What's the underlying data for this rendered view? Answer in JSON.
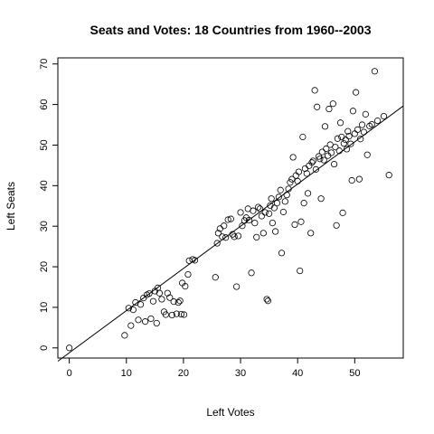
{
  "chart_data": {
    "type": "scatter",
    "title": "Seats and Votes: 18 Countries from 1960--2003",
    "xlabel": "Left Votes",
    "ylabel": "Left Seats",
    "xlim": [
      -2,
      58.5
    ],
    "ylim": [
      -2.5,
      71.5
    ],
    "xticks": [
      0,
      10,
      20,
      30,
      40,
      50
    ],
    "yticks": [
      0,
      10,
      20,
      30,
      40,
      50,
      60,
      70
    ],
    "grid": false,
    "legend": "none",
    "marker": "open-circle",
    "fit_line": {
      "intercept": -1.2,
      "slope": 1.04
    },
    "points": [
      [
        0,
        0
      ],
      [
        9.7,
        3.1
      ],
      [
        10.4,
        9.8
      ],
      [
        10.8,
        5.5
      ],
      [
        11.2,
        9.4
      ],
      [
        11.6,
        11.2
      ],
      [
        12.1,
        6.9
      ],
      [
        12.5,
        10.7
      ],
      [
        13.0,
        12.3
      ],
      [
        13.3,
        6.5
      ],
      [
        13.6,
        13.1
      ],
      [
        14.0,
        13.4
      ],
      [
        14.3,
        7.2
      ],
      [
        14.7,
        11.5
      ],
      [
        15.0,
        14.0
      ],
      [
        15.3,
        6.1
      ],
      [
        15.5,
        14.8
      ],
      [
        15.8,
        13.5
      ],
      [
        16.2,
        12.0
      ],
      [
        16.6,
        8.9
      ],
      [
        16.9,
        8.2
      ],
      [
        17.2,
        13.5
      ],
      [
        17.6,
        12.4
      ],
      [
        18.0,
        8.1
      ],
      [
        18.3,
        11.4
      ],
      [
        18.8,
        8.4
      ],
      [
        19.1,
        11.2
      ],
      [
        19.4,
        11.6
      ],
      [
        19.6,
        8.3
      ],
      [
        19.8,
        16.0
      ],
      [
        20.1,
        8.2
      ],
      [
        20.3,
        15.2
      ],
      [
        20.8,
        18.1
      ],
      [
        21.0,
        21.5
      ],
      [
        21.6,
        21.8
      ],
      [
        22.0,
        21.6
      ],
      [
        25.6,
        17.4
      ],
      [
        25.9,
        25.8
      ],
      [
        26.1,
        28.3
      ],
      [
        26.4,
        29.4
      ],
      [
        26.8,
        27.4
      ],
      [
        27.1,
        30.1
      ],
      [
        27.4,
        27.2
      ],
      [
        27.8,
        31.6
      ],
      [
        28.3,
        31.8
      ],
      [
        28.6,
        28.0
      ],
      [
        28.9,
        27.4
      ],
      [
        29.3,
        15.1
      ],
      [
        29.6,
        27.6
      ],
      [
        30.0,
        33.4
      ],
      [
        30.3,
        30.1
      ],
      [
        30.7,
        31.4
      ],
      [
        31.0,
        32.1
      ],
      [
        31.3,
        34.3
      ],
      [
        31.5,
        31.5
      ],
      [
        31.9,
        18.5
      ],
      [
        32.2,
        33.8
      ],
      [
        32.5,
        30.8
      ],
      [
        32.8,
        27.3
      ],
      [
        33.1,
        34.7
      ],
      [
        33.4,
        34.3
      ],
      [
        33.7,
        32.5
      ],
      [
        34.0,
        28.3
      ],
      [
        34.3,
        33.4
      ],
      [
        34.6,
        12.0
      ],
      [
        34.8,
        11.6
      ],
      [
        35.0,
        33.1
      ],
      [
        35.2,
        35.1
      ],
      [
        35.4,
        36.8
      ],
      [
        35.6,
        30.8
      ],
      [
        35.9,
        34.5
      ],
      [
        36.1,
        28.7
      ],
      [
        36.4,
        35.7
      ],
      [
        36.7,
        37.2
      ],
      [
        37.0,
        38.9
      ],
      [
        37.2,
        23.4
      ],
      [
        37.5,
        33.5
      ],
      [
        37.8,
        36.1
      ],
      [
        38.1,
        37.7
      ],
      [
        38.4,
        39.2
      ],
      [
        38.7,
        40.8
      ],
      [
        39.0,
        41.6
      ],
      [
        39.2,
        47.0
      ],
      [
        39.5,
        30.4
      ],
      [
        39.7,
        42.5
      ],
      [
        40.0,
        41.1
      ],
      [
        40.2,
        43.4
      ],
      [
        40.4,
        19.0
      ],
      [
        40.6,
        31.1
      ],
      [
        40.9,
        52.0
      ],
      [
        41.1,
        35.7
      ],
      [
        41.3,
        44.2
      ],
      [
        41.6,
        43.0
      ],
      [
        41.8,
        38.1
      ],
      [
        42.0,
        44.9
      ],
      [
        42.3,
        28.3
      ],
      [
        42.5,
        45.7
      ],
      [
        42.7,
        46.1
      ],
      [
        43.0,
        63.5
      ],
      [
        43.2,
        44.0
      ],
      [
        43.4,
        59.4
      ],
      [
        43.7,
        47.2
      ],
      [
        43.9,
        46.6
      ],
      [
        44.1,
        36.8
      ],
      [
        44.3,
        48.3
      ],
      [
        44.6,
        46.3
      ],
      [
        44.8,
        54.6
      ],
      [
        45.0,
        49.1
      ],
      [
        45.3,
        47.4
      ],
      [
        45.5,
        58.9
      ],
      [
        45.7,
        50.1
      ],
      [
        45.9,
        48.1
      ],
      [
        46.2,
        60.2
      ],
      [
        46.4,
        45.3
      ],
      [
        46.6,
        49.5
      ],
      [
        46.8,
        30.2
      ],
      [
        47.0,
        51.6
      ],
      [
        47.3,
        48.6
      ],
      [
        47.5,
        55.5
      ],
      [
        47.7,
        52.0
      ],
      [
        47.9,
        33.3
      ],
      [
        48.1,
        50.4
      ],
      [
        48.4,
        51.3
      ],
      [
        48.6,
        49.0
      ],
      [
        48.8,
        53.4
      ],
      [
        49.0,
        52.2
      ],
      [
        49.3,
        50.3
      ],
      [
        49.5,
        41.3
      ],
      [
        49.7,
        58.4
      ],
      [
        50.0,
        52.8
      ],
      [
        50.2,
        63.0
      ],
      [
        50.5,
        53.8
      ],
      [
        50.8,
        41.6
      ],
      [
        51.0,
        51.5
      ],
      [
        51.3,
        55.0
      ],
      [
        51.6,
        53.2
      ],
      [
        51.9,
        57.6
      ],
      [
        52.2,
        47.6
      ],
      [
        52.6,
        54.7
      ],
      [
        53.0,
        55.1
      ],
      [
        53.5,
        68.2
      ],
      [
        54.0,
        56.0
      ],
      [
        55.1,
        57.1
      ],
      [
        56.0,
        42.6
      ]
    ]
  }
}
